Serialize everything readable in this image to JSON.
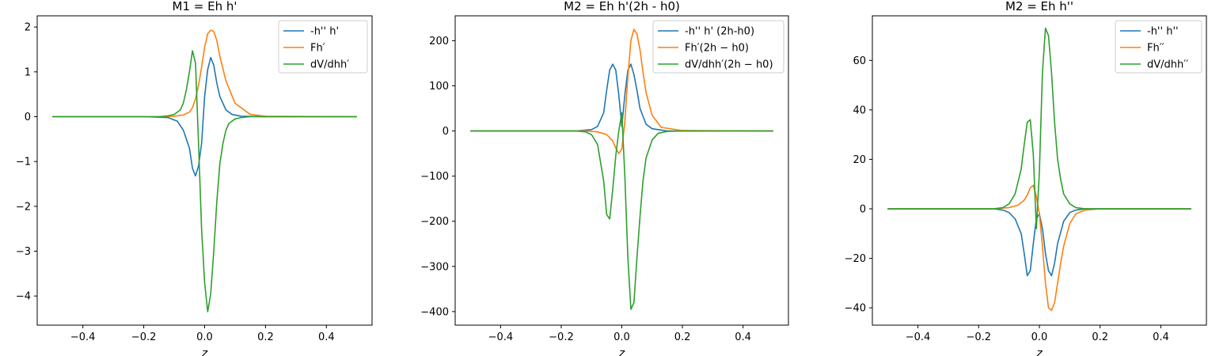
{
  "chart_data": [
    {
      "type": "line",
      "title": "M1 = Eh h'",
      "xlabel": "z",
      "ylabel": "",
      "xlim": [
        -0.55,
        0.55
      ],
      "ylim": [
        -4.65,
        2.25
      ],
      "xticks": [
        -0.4,
        -0.2,
        0.0,
        0.2,
        0.4
      ],
      "xtick_labels": [
        "−0.4",
        "−0.2",
        "0.0",
        "0.2",
        "0.4"
      ],
      "yticks": [
        -4,
        -3,
        -2,
        -1,
        0,
        1,
        2
      ],
      "ytick_labels": [
        "−4",
        "−3",
        "−2",
        "−1",
        "0",
        "1",
        "2"
      ],
      "legend_position": "upper right",
      "series": [
        {
          "name": "-h'' h'",
          "color": "#1f77b4",
          "x": [
            -0.5,
            -0.2,
            -0.12,
            -0.09,
            -0.07,
            -0.05,
            -0.04,
            -0.03,
            -0.02,
            -0.01,
            0.0,
            0.01,
            0.02,
            0.03,
            0.04,
            0.05,
            0.07,
            0.09,
            0.12,
            0.2,
            0.5
          ],
          "y": [
            0,
            0,
            -0.02,
            -0.1,
            -0.3,
            -0.7,
            -1.15,
            -1.32,
            -1.1,
            -0.6,
            0.45,
            1.05,
            1.32,
            1.15,
            0.75,
            0.45,
            0.15,
            0.05,
            0.01,
            0,
            0
          ]
        },
        {
          "name": "Fh′",
          "color": "#ff7f0e",
          "x": [
            -0.5,
            -0.15,
            -0.1,
            -0.07,
            -0.05,
            -0.04,
            -0.03,
            -0.02,
            -0.01,
            0.0,
            0.01,
            0.02,
            0.03,
            0.04,
            0.05,
            0.07,
            0.1,
            0.15,
            0.2,
            0.5
          ],
          "y": [
            0,
            0,
            0.01,
            0.04,
            0.1,
            0.2,
            0.4,
            0.7,
            1.1,
            1.55,
            1.85,
            1.93,
            1.9,
            1.7,
            1.35,
            0.8,
            0.3,
            0.05,
            0.01,
            0
          ]
        },
        {
          "name": "dV/dhh′",
          "color": "#2ca02c",
          "x": [
            -0.5,
            -0.15,
            -0.12,
            -0.1,
            -0.08,
            -0.07,
            -0.06,
            -0.05,
            -0.04,
            -0.03,
            -0.02,
            -0.01,
            0.0,
            0.01,
            0.02,
            0.03,
            0.04,
            0.05,
            0.06,
            0.07,
            0.08,
            0.1,
            0.12,
            0.15,
            0.2,
            0.5
          ],
          "y": [
            0,
            0,
            0.02,
            0.05,
            0.15,
            0.3,
            0.6,
            1.0,
            1.47,
            1.2,
            -0.6,
            -2.5,
            -3.7,
            -4.35,
            -3.95,
            -3.0,
            -1.9,
            -1.05,
            -0.6,
            -0.3,
            -0.15,
            -0.05,
            -0.02,
            0,
            0,
            0
          ]
        }
      ]
    },
    {
      "type": "line",
      "title": "M2 = Eh h'(2h - h0)",
      "xlabel": "z",
      "ylabel": "",
      "xlim": [
        -0.55,
        0.55
      ],
      "ylim": [
        -430,
        255
      ],
      "xticks": [
        -0.4,
        -0.2,
        0.0,
        0.2,
        0.4
      ],
      "xtick_labels": [
        "−0.4",
        "−0.2",
        "0.0",
        "0.2",
        "0.4"
      ],
      "yticks": [
        -400,
        -300,
        -200,
        -100,
        0,
        100,
        200
      ],
      "ytick_labels": [
        "−400",
        "−300",
        "−200",
        "−100",
        "0",
        "100",
        "200"
      ],
      "legend_position": "upper right",
      "series": [
        {
          "name": "-h'' h' (2h-h0)",
          "color": "#1f77b4",
          "x": [
            -0.5,
            -0.15,
            -0.1,
            -0.08,
            -0.06,
            -0.05,
            -0.04,
            -0.03,
            -0.02,
            -0.01,
            0.0,
            0.01,
            0.02,
            0.03,
            0.04,
            0.05,
            0.06,
            0.08,
            0.1,
            0.15,
            0.5
          ],
          "y": [
            0,
            0,
            3,
            10,
            40,
            90,
            135,
            148,
            135,
            80,
            10,
            80,
            135,
            148,
            125,
            90,
            50,
            15,
            5,
            0,
            0
          ]
        },
        {
          "name": "Fh′(2h − h0)",
          "color": "#ff7f0e",
          "x": [
            -0.5,
            -0.12,
            -0.08,
            -0.05,
            -0.03,
            -0.02,
            -0.01,
            0.0,
            0.01,
            0.02,
            0.03,
            0.04,
            0.05,
            0.06,
            0.07,
            0.08,
            0.1,
            0.13,
            0.2,
            0.5
          ],
          "y": [
            0,
            0,
            -2,
            -8,
            -22,
            -38,
            -50,
            -40,
            20,
            120,
            200,
            225,
            215,
            180,
            130,
            85,
            35,
            8,
            1,
            0
          ]
        },
        {
          "name": "dV/dhh′(2h − h0)",
          "color": "#2ca02c",
          "x": [
            -0.5,
            -0.15,
            -0.12,
            -0.1,
            -0.08,
            -0.06,
            -0.05,
            -0.04,
            -0.03,
            -0.02,
            -0.01,
            0.0,
            0.01,
            0.02,
            0.03,
            0.04,
            0.05,
            0.06,
            0.07,
            0.08,
            0.1,
            0.12,
            0.15,
            0.2,
            0.5
          ],
          "y": [
            0,
            0,
            -2,
            -8,
            -30,
            -110,
            -185,
            -195,
            -130,
            -55,
            0,
            40,
            -100,
            -280,
            -395,
            -380,
            -280,
            -190,
            -110,
            -60,
            -20,
            -5,
            -1,
            0,
            0
          ]
        }
      ]
    },
    {
      "type": "line",
      "title": "M2 = Eh h''",
      "xlabel": "z",
      "ylabel": "",
      "xlim": [
        -0.55,
        0.55
      ],
      "ylim": [
        -47,
        78
      ],
      "xticks": [
        -0.4,
        -0.2,
        0.0,
        0.2,
        0.4
      ],
      "xtick_labels": [
        "−0.4",
        "−0.2",
        "0.0",
        "0.2",
        "0.4"
      ],
      "yticks": [
        -40,
        -20,
        0,
        20,
        40,
        60
      ],
      "ytick_labels": [
        "−40",
        "−20",
        "0",
        "20",
        "40",
        "60"
      ],
      "legend_position": "upper right",
      "series": [
        {
          "name": "-h'' h''",
          "color": "#1f77b4",
          "x": [
            -0.5,
            -0.15,
            -0.12,
            -0.1,
            -0.08,
            -0.06,
            -0.05,
            -0.04,
            -0.03,
            -0.02,
            -0.01,
            0.0,
            0.01,
            0.02,
            0.03,
            0.04,
            0.05,
            0.06,
            0.08,
            0.1,
            0.12,
            0.15,
            0.5
          ],
          "y": [
            0,
            0,
            -0.5,
            -1.5,
            -4,
            -10,
            -18,
            -27,
            -25,
            -14,
            -4,
            -2,
            -8,
            -18,
            -25,
            -27,
            -22,
            -14,
            -5,
            -1.5,
            -0.5,
            0,
            0
          ]
        },
        {
          "name": "Fh′′",
          "color": "#ff7f0e",
          "x": [
            -0.5,
            -0.15,
            -0.1,
            -0.07,
            -0.05,
            -0.04,
            -0.03,
            -0.02,
            -0.01,
            0.0,
            0.01,
            0.02,
            0.03,
            0.04,
            0.05,
            0.06,
            0.07,
            0.08,
            0.1,
            0.12,
            0.15,
            0.2,
            0.5
          ],
          "y": [
            0,
            0,
            0.5,
            1.5,
            3.5,
            5.5,
            8.5,
            9.5,
            5,
            -2,
            -15,
            -30,
            -40,
            -41,
            -38,
            -30,
            -22,
            -15,
            -6,
            -2,
            -0.5,
            0,
            0
          ]
        },
        {
          "name": "dV/dhh′′",
          "color": "#2ca02c",
          "x": [
            -0.5,
            -0.15,
            -0.12,
            -0.1,
            -0.08,
            -0.06,
            -0.05,
            -0.04,
            -0.03,
            -0.02,
            -0.01,
            0.0,
            0.01,
            0.02,
            0.03,
            0.04,
            0.05,
            0.06,
            0.07,
            0.08,
            0.1,
            0.12,
            0.15,
            0.2,
            0.5
          ],
          "y": [
            0,
            0,
            0.5,
            2,
            6,
            16,
            26,
            35,
            36,
            22,
            -8,
            15,
            55,
            73,
            70,
            55,
            35,
            20,
            12,
            6,
            2,
            0.5,
            0,
            0,
            0
          ]
        }
      ]
    }
  ]
}
